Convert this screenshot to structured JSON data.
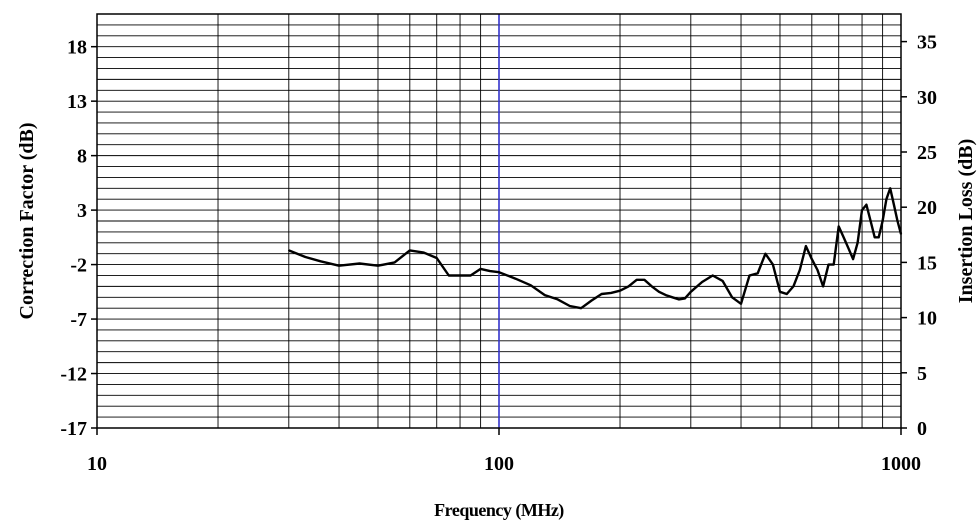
{
  "chart_data": {
    "type": "line",
    "xscale": "log",
    "xlim": [
      10,
      1000
    ],
    "ylim": [
      -17,
      21
    ],
    "ylim_right": [
      0,
      37.5
    ],
    "xlabel": "Frequency (MHz)",
    "ylabel": "Correction Factor (dB)",
    "ylabel_right": "Insertion Loss (dB)",
    "x_ticks": [
      "10",
      "100",
      "1000"
    ],
    "y_ticks": [
      "18",
      "13",
      "8",
      "3",
      "-2",
      "-7",
      "-12",
      "-17"
    ],
    "y_ticks_right": [
      "35",
      "30",
      "25",
      "20",
      "15",
      "10",
      "5",
      "0"
    ],
    "grid": true,
    "reference_line_x": 100,
    "colors": {
      "series": "#000000",
      "grid": "#000000",
      "reference_line": "#3333cc"
    },
    "series": [
      {
        "x": [
          30,
          33,
          36,
          40,
          45,
          50,
          55,
          60,
          65,
          70,
          75,
          80,
          85,
          90,
          95,
          100,
          110,
          120,
          130,
          140,
          150,
          160,
          170,
          180,
          190,
          200,
          210,
          220,
          230,
          240,
          250,
          260,
          270,
          280,
          290,
          300,
          320,
          340,
          360,
          380,
          400,
          420,
          440,
          460,
          480,
          500,
          520,
          540,
          560,
          580,
          600,
          620,
          640,
          660,
          680,
          700,
          720,
          740,
          760,
          780,
          800,
          820,
          840,
          860,
          880,
          900,
          920,
          940,
          960,
          980,
          1000
        ],
        "y": [
          -0.7,
          -1.3,
          -1.7,
          -2.1,
          -1.9,
          -2.1,
          -1.8,
          -0.7,
          -0.9,
          -1.4,
          -3.0,
          -3.0,
          -3.0,
          -2.4,
          -2.6,
          -2.7,
          -3.3,
          -3.9,
          -4.8,
          -5.2,
          -5.8,
          -6.0,
          -5.3,
          -4.7,
          -4.6,
          -4.4,
          -4.0,
          -3.4,
          -3.4,
          -4.0,
          -4.5,
          -4.8,
          -5.0,
          -5.2,
          -5.1,
          -4.5,
          -3.6,
          -3.0,
          -3.5,
          -5.0,
          -5.6,
          -3.0,
          -2.8,
          -1.0,
          -2.0,
          -4.5,
          -4.7,
          -4.0,
          -2.5,
          -0.3,
          -1.5,
          -2.5,
          -4.0,
          -2.0,
          -2.0,
          1.5,
          0.5,
          -0.5,
          -1.5,
          0.0,
          3.0,
          3.5,
          2.0,
          0.5,
          0.5,
          2.0,
          4.0,
          5.0,
          3.5,
          2.0,
          0.8
        ]
      }
    ]
  }
}
